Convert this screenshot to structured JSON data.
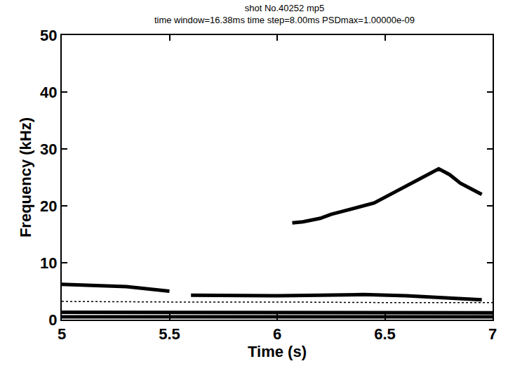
{
  "chart_data": {
    "type": "scatter",
    "title": "shot No.40252 mp5",
    "subtitle": "time window=16.38ms time step=8.00ms PSDmax=1.00000e-09",
    "x_label": "Time (s)",
    "y_label": "Frequency (kHz)",
    "xlim": [
      5,
      7
    ],
    "xticks": [
      5,
      5.5,
      6,
      6.5,
      7
    ],
    "ylim": [
      0,
      50
    ],
    "yticks": [
      0,
      10,
      20,
      30,
      40,
      50
    ],
    "grid": false,
    "color": "#000000",
    "series": [
      {
        "x": [
          6.07,
          6.12,
          6.2,
          6.25,
          6.3,
          6.35,
          6.4,
          6.45,
          6.5,
          6.55,
          6.6,
          6.65,
          6.7,
          6.75,
          6.8,
          6.85,
          6.9,
          6.95
        ],
        "values": [
          17,
          17.2,
          17.8,
          18.5,
          19,
          19.5,
          20,
          20.5,
          21.5,
          22.5,
          23.5,
          24.5,
          25.5,
          26.5,
          25.5,
          24,
          23,
          22
        ],
        "line_style": "solid"
      },
      {
        "x": [
          5.0,
          5.1,
          5.2,
          5.3,
          5.4,
          5.5,
          5.55,
          5.6,
          5.8,
          6.0,
          6.2,
          6.4,
          6.6,
          6.8,
          6.95
        ],
        "values": [
          6.2,
          6.1,
          6.0,
          5.8,
          5.4,
          5.0,
          null,
          4.3,
          4.2,
          4.2,
          4.3,
          4.4,
          4.2,
          3.8,
          3.5
        ],
        "line_style": "solid"
      },
      {
        "x": [
          5.0,
          5.5,
          6.0,
          6.5,
          7.0
        ],
        "values": [
          3.2,
          3.1,
          3.1,
          3.0,
          3.0
        ],
        "line_style": "dotted"
      },
      {
        "x": [
          5.0,
          5.5,
          6.0,
          6.5,
          7.0
        ],
        "values": [
          1.3,
          1.3,
          1.2,
          1.2,
          1.2
        ],
        "line_style": "solid"
      },
      {
        "x": [
          5.0,
          5.5,
          6.0,
          6.5,
          7.0
        ],
        "values": [
          0.5,
          0.5,
          0.5,
          0.5,
          0.5
        ],
        "line_style": "solid"
      }
    ]
  }
}
